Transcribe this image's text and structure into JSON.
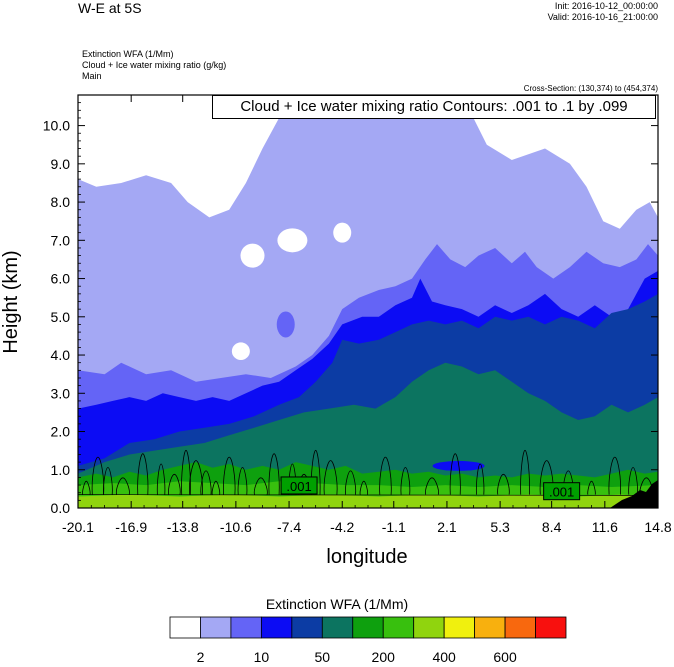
{
  "header": {
    "title": "W-E at 5S",
    "init": "Init: 2016-10-12_00:00:00",
    "valid": "Valid: 2016-10-16_21:00:00",
    "field_lines": [
      "Extinction WFA   (1/Mm)",
      "Cloud + Ice water mixing ratio   (g/kg)",
      "Main"
    ],
    "cross_section": "Cross-Section: (130,374) to (454,374)",
    "contour_label": "Cloud + Ice water mixing ratio Contours: .001 to .1 by .099"
  },
  "chart_data": {
    "type": "heatmap",
    "xlabel": "longitude",
    "ylabel": "Height (km)",
    "xlim": [
      -20.1,
      14.8
    ],
    "ylim": [
      0.0,
      10.8
    ],
    "x_ticks": [
      "-20.1",
      "-16.9",
      "-13.8",
      "-10.6",
      "-7.4",
      "-4.2",
      "-1.1",
      "2.1",
      "5.3",
      "8.4",
      "11.6",
      "14.8"
    ],
    "y_ticks": [
      "0.0",
      "1.0",
      "2.0",
      "3.0",
      "4.0",
      "5.0",
      "6.0",
      "7.0",
      "8.0",
      "9.0",
      "10.0"
    ],
    "colorbar": {
      "title": "Extinction WFA  (1/Mm)",
      "colors": [
        "#ffffff",
        "#a4a8f4",
        "#6464f6",
        "#0c0cf4",
        "#0c3ca4",
        "#0c7460",
        "#0ea00e",
        "#38c00e",
        "#90d40e",
        "#f0f00e",
        "#f8b00e",
        "#f8680e",
        "#f8100e"
      ],
      "labels": [
        "2",
        "10",
        "50",
        "200",
        "400",
        "600"
      ]
    },
    "contour_labels": [
      ".001",
      ".001"
    ],
    "field_shading": [
      {
        "level": "#ffffff",
        "top": [
          [
            -20.1,
            10.8
          ],
          [
            14.8,
            10.8
          ]
        ]
      },
      {
        "level": "#a4a8f4",
        "top": [
          [
            -20.1,
            8.6
          ],
          [
            -19.0,
            8.4
          ],
          [
            -17.5,
            8.5
          ],
          [
            -16.0,
            8.7
          ],
          [
            -14.5,
            8.5
          ],
          [
            -13.5,
            8.0
          ],
          [
            -12.2,
            7.6
          ],
          [
            -11.0,
            7.8
          ],
          [
            -10.0,
            8.5
          ],
          [
            -9.0,
            9.4
          ],
          [
            -8.0,
            10.2
          ],
          [
            -6.5,
            10.8
          ],
          [
            3.0,
            10.8
          ],
          [
            4.5,
            9.5
          ],
          [
            6.0,
            9.1
          ],
          [
            8.0,
            9.4
          ],
          [
            9.5,
            9.0
          ],
          [
            10.5,
            8.4
          ],
          [
            11.5,
            7.5
          ],
          [
            12.5,
            7.3
          ],
          [
            13.5,
            7.8
          ],
          [
            14.3,
            8.0
          ],
          [
            14.8,
            7.6
          ]
        ]
      },
      {
        "level": "#6464f6",
        "top": [
          [
            -20.1,
            3.6
          ],
          [
            -18.5,
            3.5
          ],
          [
            -17.5,
            3.8
          ],
          [
            -16.0,
            3.5
          ],
          [
            -14.5,
            3.6
          ],
          [
            -13.0,
            3.3
          ],
          [
            -11.5,
            3.4
          ],
          [
            -10.0,
            3.5
          ],
          [
            -8.5,
            3.4
          ],
          [
            -7.0,
            3.7
          ],
          [
            -6.0,
            4.0
          ],
          [
            -5.0,
            4.5
          ],
          [
            -4.2,
            5.2
          ],
          [
            -3.2,
            5.5
          ],
          [
            -2.0,
            5.7
          ],
          [
            -1.0,
            5.8
          ],
          [
            0.0,
            6.0
          ],
          [
            0.8,
            6.5
          ],
          [
            1.5,
            6.9
          ],
          [
            2.3,
            6.5
          ],
          [
            3.2,
            6.3
          ],
          [
            4.0,
            6.6
          ],
          [
            5.0,
            6.8
          ],
          [
            6.0,
            6.4
          ],
          [
            6.8,
            6.7
          ],
          [
            7.5,
            6.3
          ],
          [
            8.5,
            6.0
          ],
          [
            9.5,
            6.3
          ],
          [
            10.5,
            6.7
          ],
          [
            11.5,
            6.4
          ],
          [
            12.5,
            6.3
          ],
          [
            13.5,
            6.5
          ],
          [
            14.2,
            6.9
          ],
          [
            14.8,
            6.6
          ]
        ]
      },
      {
        "level": "#0c0cf4",
        "top": [
          [
            -20.1,
            2.6
          ],
          [
            -19.0,
            2.7
          ],
          [
            -18.0,
            2.8
          ],
          [
            -17.0,
            2.9
          ],
          [
            -16.0,
            2.8
          ],
          [
            -15.0,
            3.0
          ],
          [
            -14.0,
            2.9
          ],
          [
            -13.0,
            2.8
          ],
          [
            -12.0,
            2.9
          ],
          [
            -11.0,
            2.8
          ],
          [
            -10.0,
            3.0
          ],
          [
            -9.0,
            3.2
          ],
          [
            -8.0,
            3.3
          ],
          [
            -7.0,
            3.6
          ],
          [
            -6.0,
            3.9
          ],
          [
            -5.0,
            4.3
          ],
          [
            -4.2,
            4.8
          ],
          [
            -3.0,
            5.0
          ],
          [
            -2.0,
            5.0
          ],
          [
            -1.0,
            5.3
          ],
          [
            0.0,
            5.5
          ],
          [
            0.5,
            6.0
          ],
          [
            1.2,
            5.4
          ],
          [
            2.0,
            5.3
          ],
          [
            3.0,
            5.2
          ],
          [
            4.0,
            5.0
          ],
          [
            5.0,
            5.3
          ],
          [
            6.0,
            5.1
          ],
          [
            7.0,
            5.3
          ],
          [
            8.0,
            5.6
          ],
          [
            9.0,
            5.2
          ],
          [
            10.0,
            5.0
          ],
          [
            11.0,
            5.3
          ],
          [
            12.0,
            5.0
          ],
          [
            13.0,
            5.2
          ],
          [
            14.0,
            6.0
          ],
          [
            14.8,
            6.2
          ]
        ]
      },
      {
        "level": "#0c3ca4",
        "top": [
          [
            -20.1,
            1.1
          ],
          [
            -18.5,
            1.3
          ],
          [
            -17.0,
            1.7
          ],
          [
            -15.5,
            1.8
          ],
          [
            -14.0,
            2.0
          ],
          [
            -12.5,
            2.1
          ],
          [
            -11.0,
            2.2
          ],
          [
            -9.5,
            2.4
          ],
          [
            -8.0,
            2.7
          ],
          [
            -6.8,
            2.9
          ],
          [
            -5.8,
            3.3
          ],
          [
            -4.8,
            3.8
          ],
          [
            -4.2,
            4.4
          ],
          [
            -3.2,
            4.3
          ],
          [
            -2.0,
            4.4
          ],
          [
            -1.0,
            4.6
          ],
          [
            0.0,
            4.8
          ],
          [
            1.0,
            4.9
          ],
          [
            2.0,
            4.8
          ],
          [
            3.0,
            4.9
          ],
          [
            4.0,
            4.7
          ],
          [
            5.0,
            5.0
          ],
          [
            6.0,
            4.9
          ],
          [
            7.0,
            5.0
          ],
          [
            8.0,
            4.8
          ],
          [
            9.0,
            5.0
          ],
          [
            10.0,
            4.9
          ],
          [
            11.0,
            4.7
          ],
          [
            12.0,
            5.1
          ],
          [
            13.0,
            5.2
          ],
          [
            14.0,
            5.4
          ],
          [
            14.8,
            5.6
          ]
        ]
      },
      {
        "level": "#0c7460",
        "top": [
          [
            -20.1,
            0.9
          ],
          [
            -18.5,
            1.2
          ],
          [
            -17.0,
            1.4
          ],
          [
            -15.5,
            1.5
          ],
          [
            -14.0,
            1.6
          ],
          [
            -12.5,
            1.7
          ],
          [
            -11.0,
            1.9
          ],
          [
            -9.5,
            2.1
          ],
          [
            -8.0,
            2.3
          ],
          [
            -6.5,
            2.5
          ],
          [
            -5.0,
            2.6
          ],
          [
            -3.5,
            2.7
          ],
          [
            -2.2,
            2.6
          ],
          [
            -1.0,
            2.9
          ],
          [
            0.0,
            3.3
          ],
          [
            1.0,
            3.6
          ],
          [
            2.0,
            3.8
          ],
          [
            3.0,
            3.7
          ],
          [
            4.0,
            3.5
          ],
          [
            5.0,
            3.6
          ],
          [
            6.0,
            3.3
          ],
          [
            7.0,
            3.0
          ],
          [
            8.0,
            2.8
          ],
          [
            9.0,
            2.5
          ],
          [
            10.0,
            2.3
          ],
          [
            11.0,
            2.4
          ],
          [
            12.0,
            2.7
          ],
          [
            13.0,
            2.5
          ],
          [
            14.0,
            2.7
          ],
          [
            14.8,
            2.9
          ]
        ]
      },
      {
        "level": "#0ea00e",
        "top": [
          [
            -20.1,
            0.8
          ],
          [
            -19.0,
            0.9
          ],
          [
            -18.0,
            0.8
          ],
          [
            -17.0,
            0.95
          ],
          [
            -16.0,
            0.85
          ],
          [
            -15.0,
            1.0
          ],
          [
            -14.0,
            1.1
          ],
          [
            -13.0,
            1.2
          ],
          [
            -12.0,
            1.05
          ],
          [
            -11.0,
            1.15
          ],
          [
            -10.0,
            1.0
          ],
          [
            -9.0,
            1.1
          ],
          [
            -8.0,
            1.0
          ],
          [
            -7.0,
            1.2
          ],
          [
            -6.0,
            1.1
          ],
          [
            -5.0,
            1.0
          ],
          [
            -4.0,
            1.1
          ],
          [
            -3.0,
            0.9
          ],
          [
            -2.0,
            0.95
          ],
          [
            -1.0,
            1.0
          ],
          [
            0.0,
            0.9
          ],
          [
            1.0,
            0.95
          ],
          [
            2.0,
            0.85
          ],
          [
            3.0,
            0.9
          ],
          [
            4.0,
            0.8
          ],
          [
            5.0,
            0.85
          ],
          [
            6.0,
            0.8
          ],
          [
            7.0,
            0.9
          ],
          [
            8.0,
            0.85
          ],
          [
            9.0,
            0.9
          ],
          [
            10.0,
            0.85
          ],
          [
            11.0,
            0.8
          ],
          [
            12.0,
            0.9
          ],
          [
            13.0,
            1.0
          ],
          [
            14.0,
            0.9
          ],
          [
            14.8,
            0.95
          ]
        ]
      },
      {
        "level": "#38c00e",
        "top": [
          [
            -20.1,
            0.6
          ],
          [
            -18.0,
            0.65
          ],
          [
            -16.0,
            0.6
          ],
          [
            -14.0,
            0.7
          ],
          [
            -12.0,
            0.65
          ],
          [
            -10.0,
            0.6
          ],
          [
            -8.0,
            0.7
          ],
          [
            -6.0,
            0.65
          ],
          [
            -4.0,
            0.6
          ],
          [
            -2.0,
            0.6
          ],
          [
            0.0,
            0.55
          ],
          [
            2.0,
            0.6
          ],
          [
            4.0,
            0.55
          ],
          [
            6.0,
            0.6
          ],
          [
            8.0,
            0.55
          ],
          [
            10.0,
            0.6
          ],
          [
            12.0,
            0.55
          ],
          [
            14.8,
            0.6
          ]
        ]
      },
      {
        "level": "#90d40e",
        "top": [
          [
            -20.1,
            0.3
          ],
          [
            -17.0,
            0.35
          ],
          [
            -14.0,
            0.3
          ],
          [
            -11.0,
            0.35
          ],
          [
            -8.0,
            0.3
          ],
          [
            -5.0,
            0.35
          ],
          [
            -2.0,
            0.3
          ],
          [
            1.0,
            0.35
          ],
          [
            4.0,
            0.3
          ],
          [
            7.0,
            0.35
          ],
          [
            10.0,
            0.3
          ],
          [
            12.5,
            0.35
          ],
          [
            14.8,
            0.3
          ]
        ]
      }
    ]
  }
}
